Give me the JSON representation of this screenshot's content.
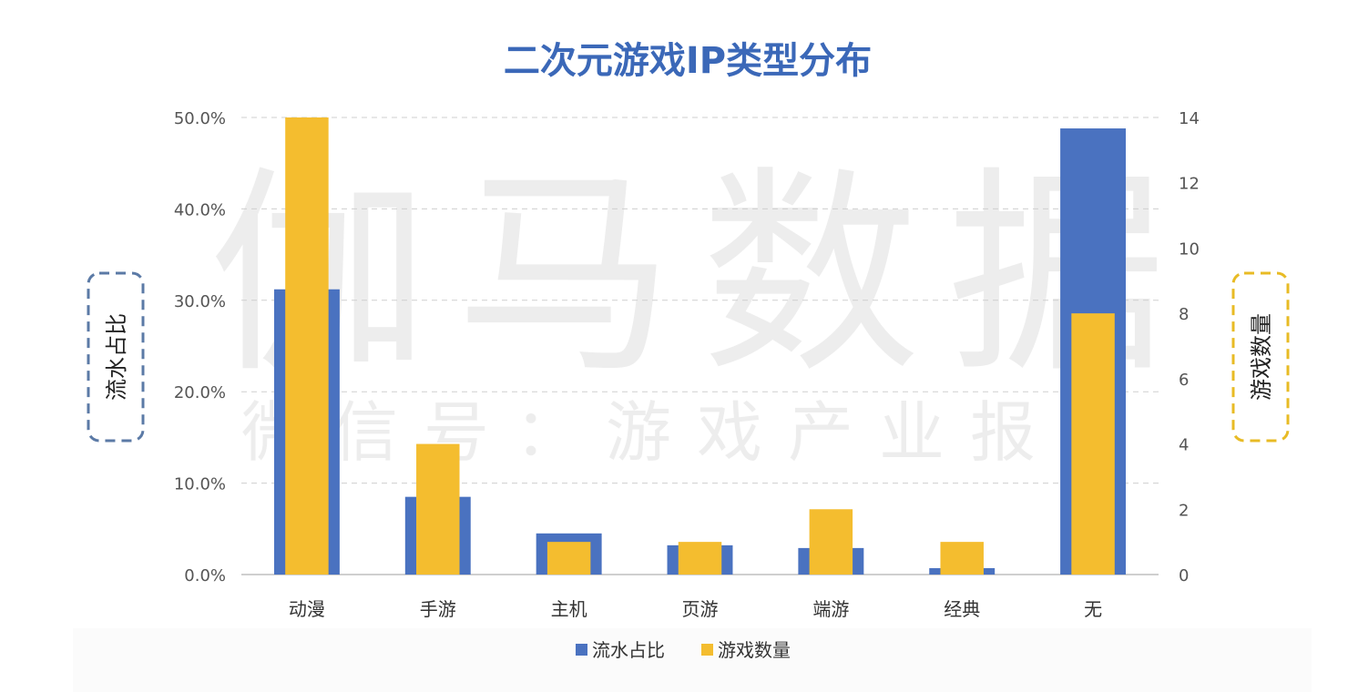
{
  "chart_data": {
    "type": "bar",
    "title": "二次元游戏IP类型分布",
    "categories": [
      "动漫",
      "手游",
      "主机",
      "页游",
      "端游",
      "经典",
      "无"
    ],
    "series": [
      {
        "name": "流水占比",
        "axis": "left",
        "values": [
          31.2,
          8.5,
          4.5,
          3.2,
          2.9,
          0.7,
          48.8
        ]
      },
      {
        "name": "游戏数量",
        "axis": "right",
        "values": [
          14,
          4,
          1,
          1,
          2,
          1,
          8
        ]
      }
    ],
    "y_left": {
      "label": "流水占比",
      "ticks": [
        "0.0%",
        "10.0%",
        "20.0%",
        "30.0%",
        "40.0%",
        "50.0%"
      ],
      "ylim": [
        0,
        50
      ]
    },
    "y_right": {
      "label": "游戏数量",
      "ticks": [
        "0",
        "2",
        "4",
        "6",
        "8",
        "10",
        "12",
        "14"
      ],
      "ylim": [
        0,
        14
      ]
    },
    "legend_position": "bottom",
    "grid": true,
    "colors": {
      "series1": "#4a72c0",
      "series2": "#f4bd2f",
      "title": "#3b68b8",
      "axis_text": "#555555"
    }
  },
  "watermark": {
    "main": "伽马数据",
    "sub": "微信号：游戏产业报告"
  }
}
